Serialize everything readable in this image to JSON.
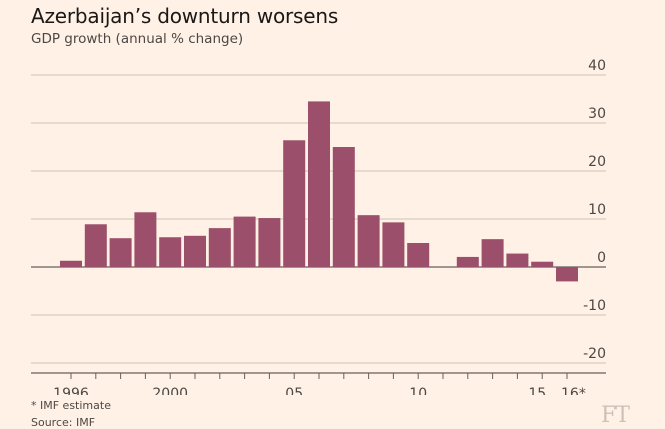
{
  "header": {
    "title": "Azerbaijan’s downturn worsens",
    "subtitle": "GDP growth (annual % change)"
  },
  "footer": {
    "note": "* IMF estimate",
    "source": "Source: IMF",
    "logo": "FT"
  },
  "chart_data": {
    "type": "bar",
    "title": "Azerbaijan’s downturn worsens",
    "subtitle": "GDP growth (annual % change)",
    "xlabel": "",
    "ylabel": "",
    "ylim": [
      -20,
      40
    ],
    "y_ticks": [
      40,
      30,
      20,
      10,
      0,
      -10,
      -20
    ],
    "y_tick_labels": [
      "40",
      "30",
      "20",
      "10",
      "0",
      "-10",
      "-20"
    ],
    "grid": true,
    "y_axis_position": "right",
    "bar_color": "#9b4f6a",
    "categories": [
      1996,
      1997,
      1998,
      1999,
      2000,
      2001,
      2002,
      2003,
      2004,
      2005,
      2006,
      2007,
      2008,
      2009,
      2010,
      2011,
      2012,
      2013,
      2014,
      2015,
      2016
    ],
    "values": [
      1.3,
      8.9,
      6.0,
      11.4,
      6.2,
      6.5,
      8.1,
      10.5,
      10.2,
      26.4,
      34.5,
      25.0,
      10.8,
      9.3,
      5.0,
      null,
      2.1,
      5.8,
      2.8,
      1.1,
      -3.0
    ],
    "x_tick_labels": [
      {
        "year": 1996,
        "label": "1996"
      },
      {
        "year": 2000,
        "label": "2000"
      },
      {
        "year": 2005,
        "label": "05"
      },
      {
        "year": 2010,
        "label": "10"
      },
      {
        "year": 2015,
        "label": "15"
      },
      {
        "year": 2016,
        "label": "16*"
      }
    ]
  }
}
